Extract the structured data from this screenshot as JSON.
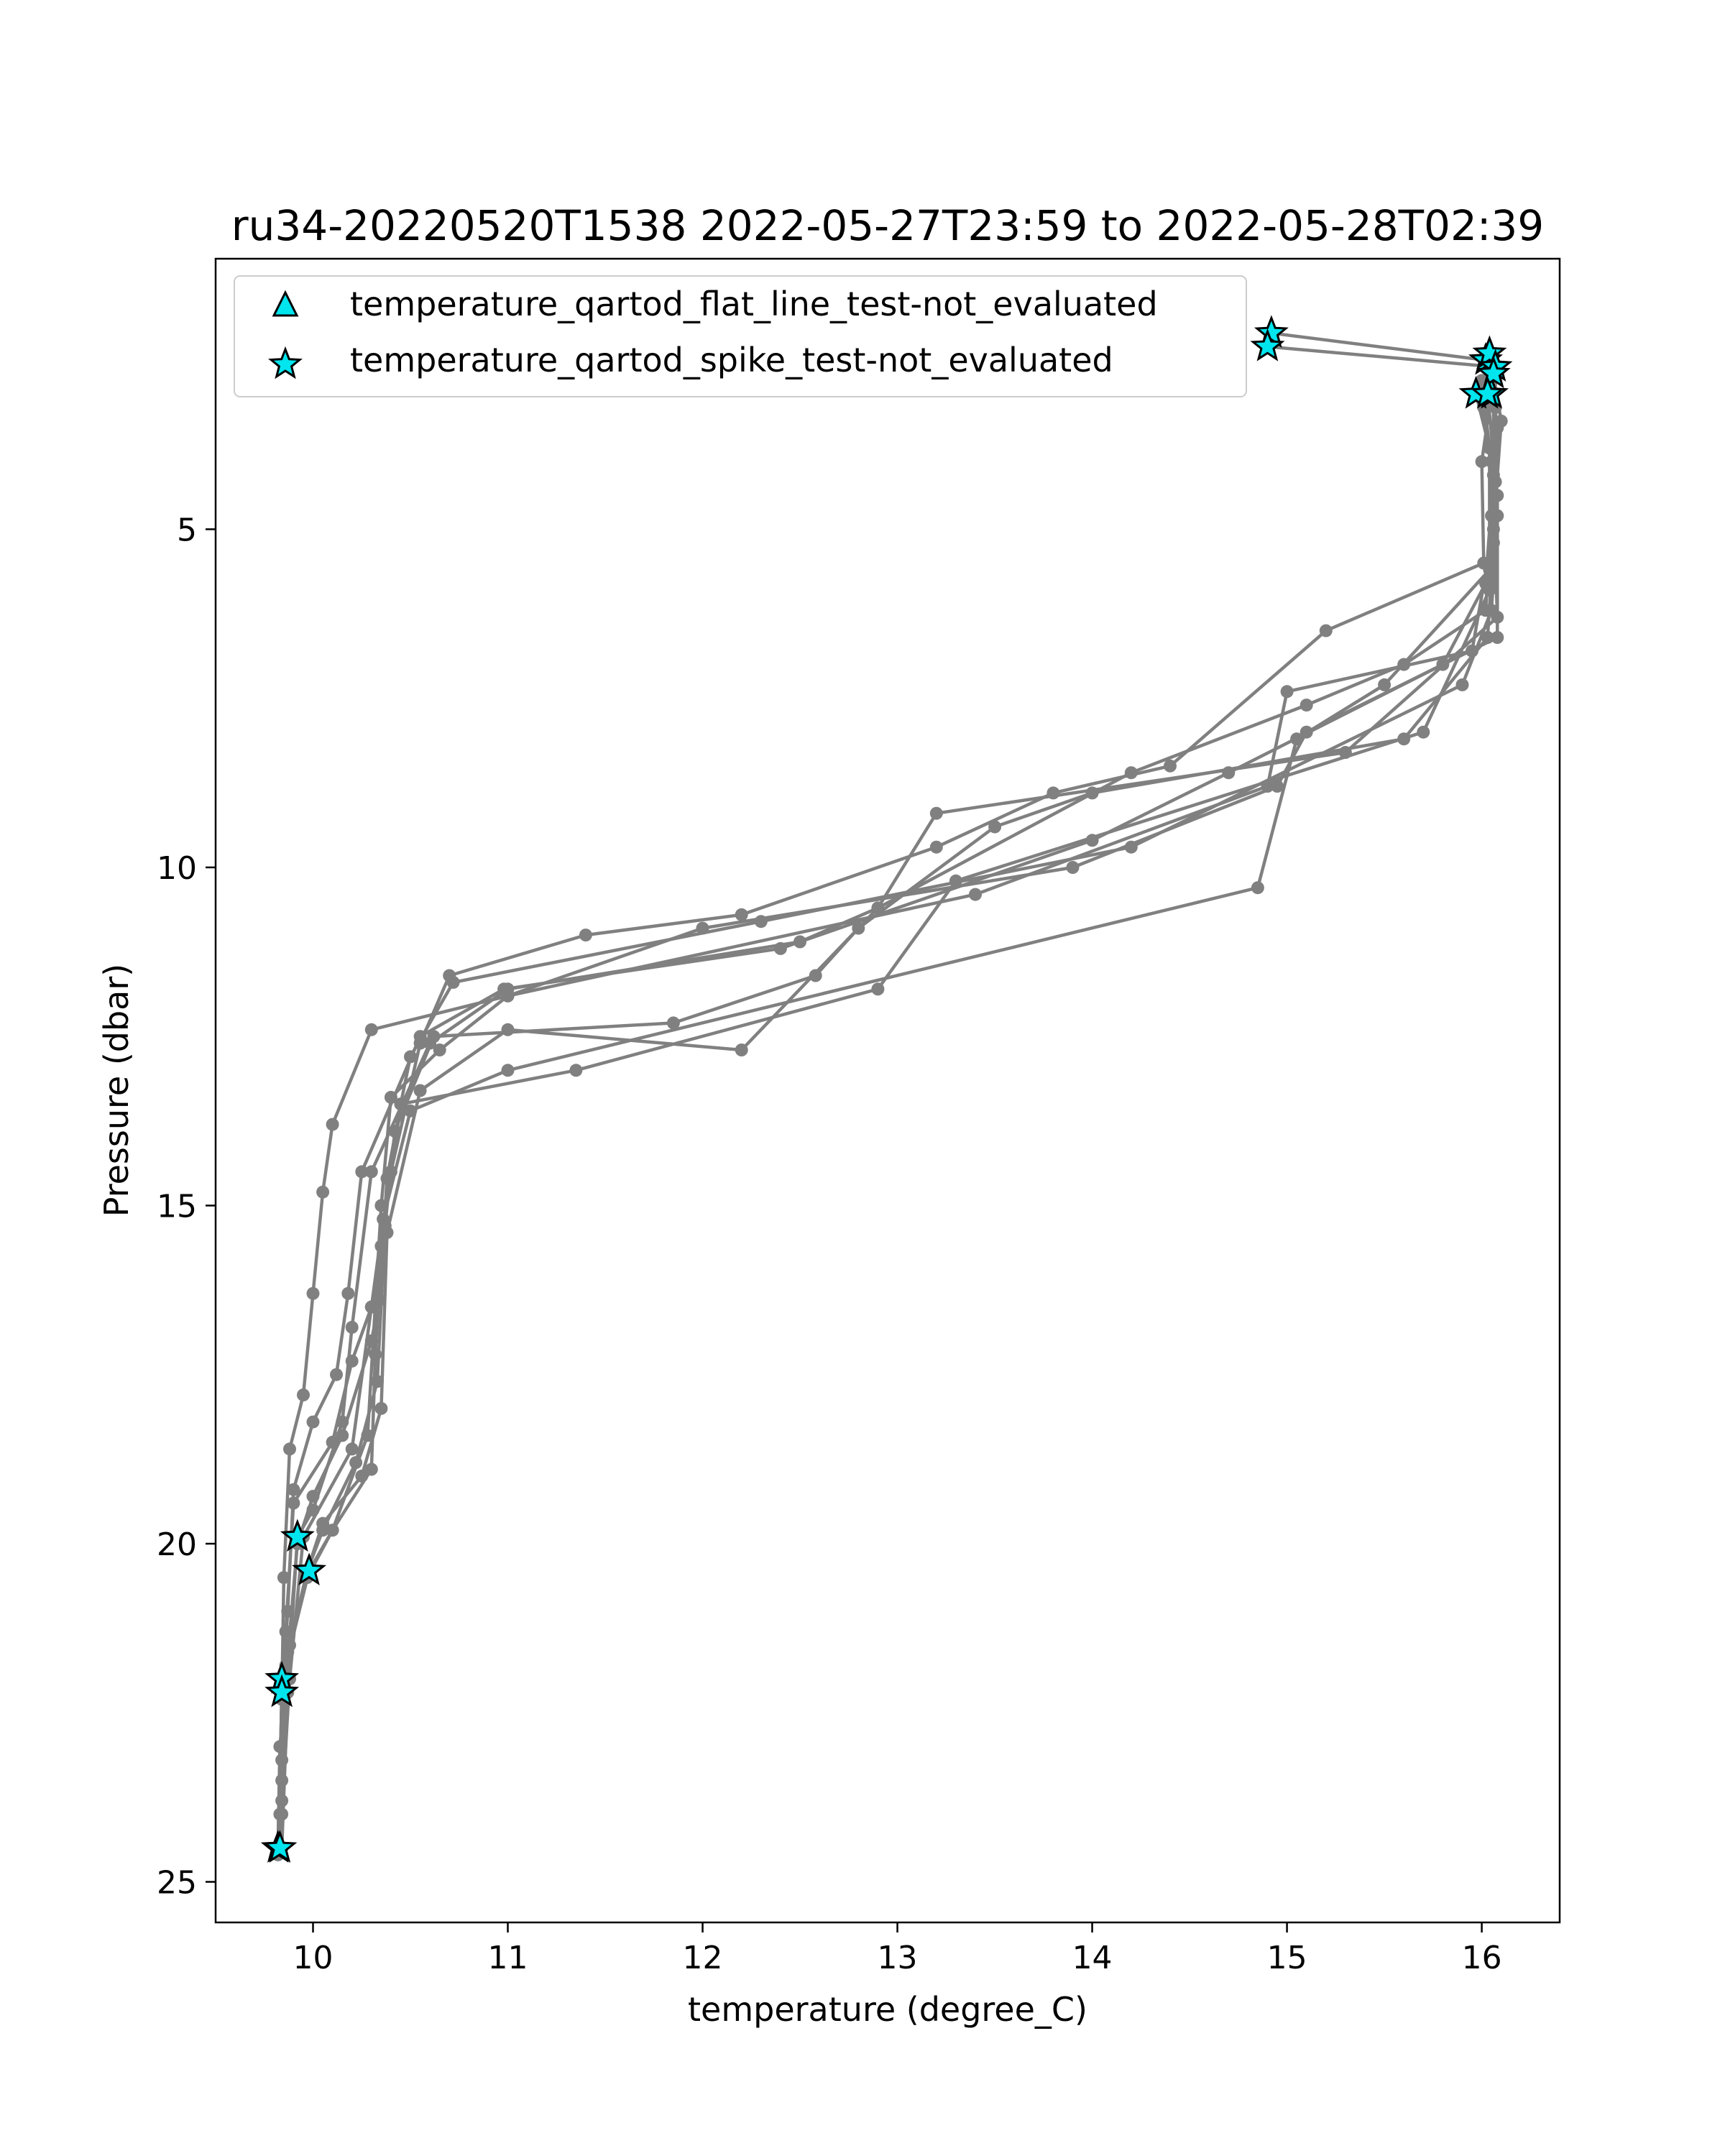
{
  "chart_data": {
    "type": "line",
    "title": "ru34-20220520T1538 2022-05-27T23:59 to 2022-05-28T02:39",
    "xlabel": "temperature (degree_C)",
    "ylabel": "Pressure (dbar)",
    "xlim": [
      9.5,
      16.4
    ],
    "ylim": [
      25.6,
      1.0
    ],
    "y_inverted": true,
    "grid": false,
    "legend_placement": "upper left",
    "x_ticks": [
      {
        "value": 10,
        "label": "10"
      },
      {
        "value": 11,
        "label": "11"
      },
      {
        "value": 12,
        "label": "12"
      },
      {
        "value": 13,
        "label": "13"
      },
      {
        "value": 14,
        "label": "14"
      },
      {
        "value": 15,
        "label": "15"
      },
      {
        "value": 16,
        "label": "16"
      }
    ],
    "y_ticks": [
      {
        "value": 5,
        "label": "5"
      },
      {
        "value": 10,
        "label": "10"
      },
      {
        "value": 15,
        "label": "15"
      },
      {
        "value": 20,
        "label": "20"
      },
      {
        "value": 25,
        "label": "25"
      }
    ],
    "profile_color": "#808080",
    "flag_marker_color": "#00e5ee",
    "flag_marker_edge": "#000000",
    "profiles": [
      [
        [
          14.92,
          2.1
        ],
        [
          16.02,
          2.5
        ],
        [
          16.05,
          3.0
        ],
        [
          16.0,
          4.0
        ],
        [
          16.01,
          5.5
        ],
        [
          15.2,
          6.5
        ],
        [
          14.4,
          8.5
        ],
        [
          13.8,
          8.9
        ],
        [
          13.2,
          9.7
        ],
        [
          12.2,
          10.7
        ],
        [
          11.4,
          11.0
        ],
        [
          10.7,
          11.6
        ],
        [
          10.55,
          12.6
        ],
        [
          10.4,
          14.5
        ],
        [
          10.3,
          16.5
        ],
        [
          10.2,
          18.6
        ],
        [
          9.95,
          19.9
        ],
        [
          9.88,
          22.0
        ],
        [
          9.84,
          24.0
        ],
        [
          9.82,
          24.5
        ]
      ],
      [
        [
          14.9,
          2.3
        ],
        [
          16.07,
          2.6
        ],
        [
          16.07,
          3.2
        ],
        [
          16.05,
          4.8
        ],
        [
          16.02,
          6.2
        ],
        [
          15.6,
          7.0
        ],
        [
          15.1,
          7.6
        ],
        [
          14.2,
          8.6
        ],
        [
          12.9,
          10.6
        ],
        [
          12.5,
          11.1
        ],
        [
          11.0,
          11.8
        ],
        [
          10.6,
          12.6
        ],
        [
          10.3,
          14.5
        ],
        [
          10.2,
          16.8
        ],
        [
          10.15,
          18.2
        ],
        [
          10.0,
          19.5
        ],
        [
          9.92,
          19.9
        ],
        [
          9.87,
          22.2
        ],
        [
          9.84,
          24.5
        ]
      ],
      [
        [
          16.05,
          2.8
        ],
        [
          16.08,
          3.5
        ],
        [
          16.06,
          5.2
        ],
        [
          16.03,
          6.6
        ],
        [
          15.6,
          8.1
        ],
        [
          14.0,
          8.9
        ],
        [
          13.5,
          9.4
        ],
        [
          12.8,
          10.9
        ],
        [
          12.58,
          11.6
        ],
        [
          11.85,
          12.3
        ],
        [
          10.62,
          12.5
        ],
        [
          10.42,
          13.9
        ],
        [
          10.37,
          15.3
        ],
        [
          10.33,
          17.6
        ],
        [
          10.22,
          18.8
        ],
        [
          10.05,
          19.8
        ],
        [
          9.97,
          20.4
        ],
        [
          9.85,
          22.0
        ],
        [
          9.83,
          24.5
        ]
      ],
      [
        [
          15.98,
          3.0
        ],
        [
          16.05,
          4.0
        ],
        [
          16.08,
          6.3
        ],
        [
          15.3,
          8.3
        ],
        [
          13.2,
          9.2
        ],
        [
          12.9,
          10.6
        ],
        [
          12.2,
          12.7
        ],
        [
          11.0,
          12.4
        ],
        [
          10.55,
          13.3
        ],
        [
          10.38,
          15.4
        ],
        [
          10.35,
          18.0
        ],
        [
          10.25,
          19.0
        ],
        [
          10.05,
          19.7
        ],
        [
          9.97,
          20.4
        ],
        [
          9.88,
          21.5
        ],
        [
          9.83,
          23.0
        ],
        [
          9.82,
          24.5
        ]
      ],
      [
        [
          16.04,
          2.4
        ],
        [
          16.1,
          3.4
        ],
        [
          16.06,
          5.0
        ],
        [
          15.95,
          6.8
        ],
        [
          15.0,
          7.4
        ],
        [
          14.9,
          8.8
        ],
        [
          13.4,
          10.4
        ],
        [
          11.0,
          11.9
        ],
        [
          10.65,
          12.7
        ],
        [
          10.4,
          13.4
        ],
        [
          10.35,
          15.0
        ],
        [
          10.28,
          18.4
        ],
        [
          10.1,
          19.8
        ],
        [
          9.98,
          20.4
        ],
        [
          9.86,
          21.8
        ],
        [
          9.84,
          23.5
        ],
        [
          9.82,
          24.5
        ]
      ],
      [
        [
          16.03,
          3.0
        ],
        [
          16.08,
          4.5
        ],
        [
          16.08,
          6.6
        ],
        [
          15.1,
          8.0
        ],
        [
          14.95,
          8.8
        ],
        [
          13.9,
          10.0
        ],
        [
          12.0,
          10.9
        ],
        [
          11.0,
          11.9
        ],
        [
          10.3,
          12.4
        ],
        [
          10.1,
          13.8
        ],
        [
          10.05,
          14.8
        ],
        [
          10.0,
          16.3
        ],
        [
          9.95,
          17.8
        ],
        [
          9.88,
          18.6
        ],
        [
          9.85,
          20.5
        ],
        [
          9.84,
          22.3
        ],
        [
          9.82,
          24.5
        ]
      ],
      [
        [
          16.06,
          2.7
        ],
        [
          16.06,
          4.2
        ],
        [
          16.02,
          5.8
        ],
        [
          15.8,
          7.0
        ],
        [
          14.7,
          8.6
        ],
        [
          14.0,
          9.6
        ],
        [
          12.4,
          11.2
        ],
        [
          10.98,
          11.8
        ],
        [
          10.55,
          12.5
        ],
        [
          10.25,
          14.5
        ],
        [
          10.18,
          16.3
        ],
        [
          10.12,
          17.5
        ],
        [
          10.0,
          18.2
        ],
        [
          9.9,
          19.2
        ],
        [
          9.87,
          21.0
        ],
        [
          9.84,
          22.3
        ],
        [
          9.82,
          24.5
        ]
      ],
      [
        [
          15.97,
          3.0
        ],
        [
          16.04,
          3.8
        ],
        [
          16.04,
          5.6
        ],
        [
          15.5,
          7.3
        ],
        [
          15.05,
          8.1
        ],
        [
          14.85,
          10.3
        ],
        [
          11.0,
          13.0
        ],
        [
          10.5,
          13.6
        ],
        [
          10.36,
          15.2
        ],
        [
          10.3,
          16.5
        ],
        [
          10.2,
          17.3
        ],
        [
          10.1,
          18.5
        ],
        [
          9.9,
          19.4
        ],
        [
          9.86,
          21.3
        ],
        [
          9.84,
          22.0
        ],
        [
          9.83,
          24.0
        ],
        [
          9.82,
          24.6
        ]
      ],
      [
        [
          16.0,
          2.8
        ],
        [
          16.08,
          4.8
        ],
        [
          16.05,
          6.2
        ],
        [
          15.9,
          7.3
        ],
        [
          14.2,
          9.7
        ],
        [
          12.3,
          10.8
        ],
        [
          10.72,
          11.7
        ],
        [
          10.5,
          12.8
        ],
        [
          10.45,
          13.5
        ],
        [
          10.38,
          14.6
        ],
        [
          10.34,
          16.4
        ],
        [
          10.3,
          17.0
        ],
        [
          10.15,
          18.4
        ],
        [
          10.0,
          19.3
        ],
        [
          9.92,
          20.0
        ],
        [
          9.86,
          22.0
        ],
        [
          9.84,
          23.8
        ],
        [
          9.82,
          24.5
        ]
      ],
      [
        [
          16.01,
          3.2
        ],
        [
          16.07,
          4.3
        ],
        [
          16.04,
          5.9
        ],
        [
          15.7,
          8.0
        ],
        [
          13.3,
          10.2
        ],
        [
          12.9,
          11.8
        ],
        [
          11.35,
          13.0
        ],
        [
          10.45,
          13.5
        ],
        [
          10.35,
          15.6
        ],
        [
          10.32,
          17.2
        ],
        [
          10.3,
          18.9
        ],
        [
          10.1,
          19.8
        ],
        [
          9.97,
          20.5
        ],
        [
          9.87,
          21.6
        ],
        [
          9.84,
          23.2
        ],
        [
          9.82,
          24.5
        ]
      ]
    ],
    "series": [
      {
        "name": "temperature_qartod_flat_line_test-not_evaluated",
        "marker": "triangle",
        "points": []
      },
      {
        "name": "temperature_qartod_spike_test-not_evaluated",
        "marker": "star",
        "points": [
          [
            14.92,
            2.1
          ],
          [
            14.9,
            2.3
          ],
          [
            16.02,
            2.5
          ],
          [
            16.04,
            2.4
          ],
          [
            16.07,
            2.6
          ],
          [
            15.97,
            3.0
          ],
          [
            16.05,
            3.0
          ],
          [
            16.06,
            2.7
          ],
          [
            16.03,
            3.0
          ],
          [
            9.92,
            19.9
          ],
          [
            9.98,
            20.4
          ],
          [
            9.84,
            22.0
          ],
          [
            9.84,
            22.2
          ],
          [
            9.82,
            24.5
          ],
          [
            9.83,
            24.5
          ]
        ]
      }
    ]
  }
}
